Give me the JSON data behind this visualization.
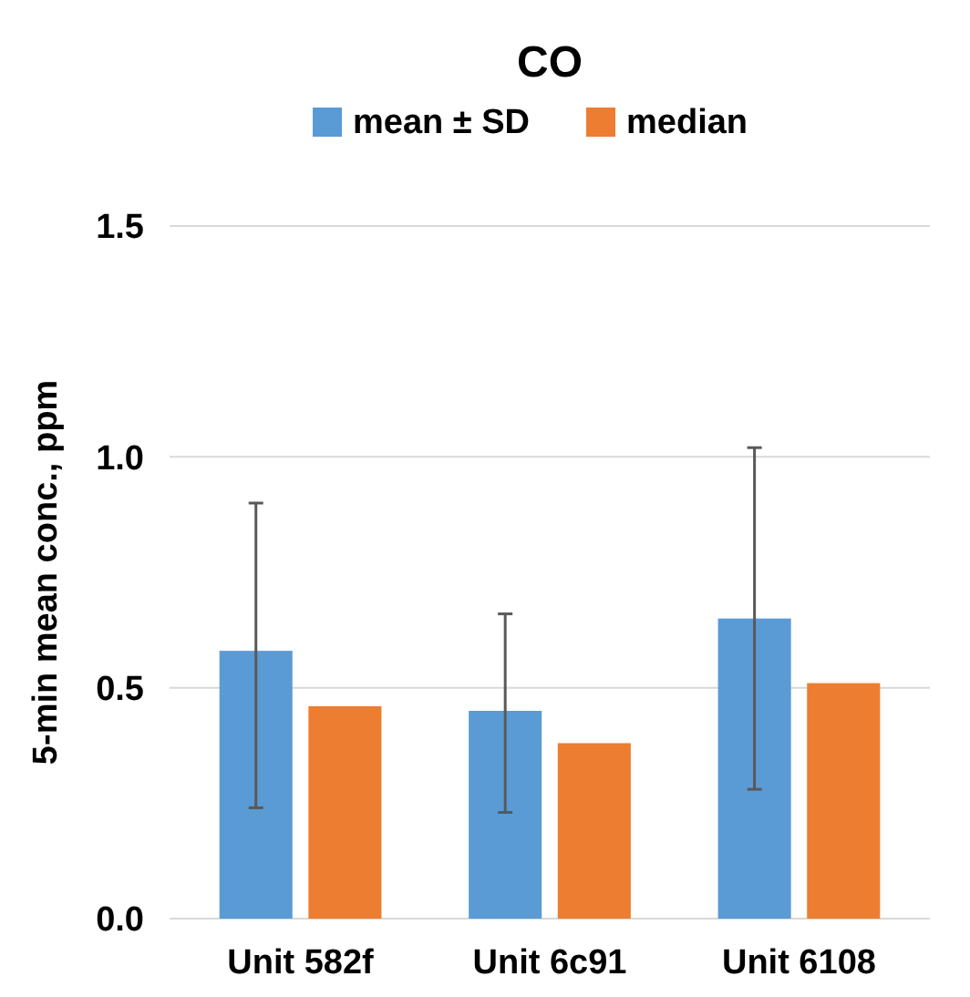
{
  "chart_data": {
    "type": "bar",
    "title": "CO",
    "ylabel": "5-min mean conc., ppm",
    "categories": [
      "Unit 582f",
      "Unit 6c91",
      "Unit 6108"
    ],
    "series": [
      {
        "name": "mean ± SD",
        "color": "#5b9bd5",
        "values": [
          0.58,
          0.45,
          0.65
        ],
        "errors": [
          [
            0.24,
            0.9
          ],
          [
            0.23,
            0.66
          ],
          [
            0.28,
            1.02
          ]
        ]
      },
      {
        "name": "median",
        "color": "#ed7d31",
        "values": [
          0.46,
          0.38,
          0.51
        ]
      }
    ],
    "ylim": [
      0,
      1.5
    ],
    "yticks": [
      {
        "value": 0,
        "label": "0.0"
      },
      {
        "value": 0.5,
        "label": "0.5"
      },
      {
        "value": 1,
        "label": "1.0"
      },
      {
        "value": 1.5,
        "label": "1.5"
      }
    ],
    "grid": "y",
    "legend": "top"
  }
}
